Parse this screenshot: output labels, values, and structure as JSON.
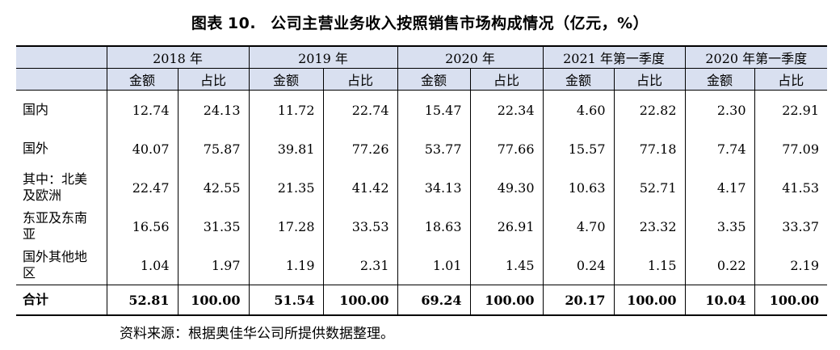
{
  "title": {
    "prefix": "图表",
    "number": "10.",
    "text": "公司主营业务收入按照销售市场构成情况（亿元，%）"
  },
  "periods": [
    "2018 年",
    "2019 年",
    "2020 年",
    "2021 年第一季度",
    "2020 年第一季度"
  ],
  "subheaders": [
    "金额",
    "占比"
  ],
  "rows": [
    {
      "label": "国内",
      "values": [
        "12.74",
        "24.13",
        "11.72",
        "22.74",
        "15.47",
        "22.34",
        "4.60",
        "22.82",
        "2.30",
        "22.91"
      ]
    },
    {
      "label": "国外",
      "values": [
        "40.07",
        "75.87",
        "39.81",
        "77.26",
        "53.77",
        "77.66",
        "15.57",
        "77.18",
        "7.74",
        "77.09"
      ]
    },
    {
      "label": "其中：北美及欧洲",
      "values": [
        "22.47",
        "42.55",
        "21.35",
        "41.42",
        "34.13",
        "49.30",
        "10.63",
        "52.71",
        "4.17",
        "41.53"
      ]
    },
    {
      "label": "东亚及东南亚",
      "values": [
        "16.56",
        "31.35",
        "17.28",
        "33.53",
        "18.63",
        "26.91",
        "4.70",
        "23.32",
        "3.35",
        "33.37"
      ]
    },
    {
      "label": "国外其他地区",
      "values": [
        "1.04",
        "1.97",
        "1.19",
        "2.31",
        "1.01",
        "1.45",
        "0.24",
        "1.15",
        "0.22",
        "2.19"
      ]
    }
  ],
  "total": {
    "label": "合计",
    "values": [
      "52.81",
      "100.00",
      "51.54",
      "100.00",
      "69.24",
      "100.00",
      "20.17",
      "100.00",
      "10.04",
      "100.00"
    ]
  },
  "source": "资料来源：根据奥佳华公司所提供数据整理。",
  "colors": {
    "header_bg": "#d9e0f0"
  }
}
